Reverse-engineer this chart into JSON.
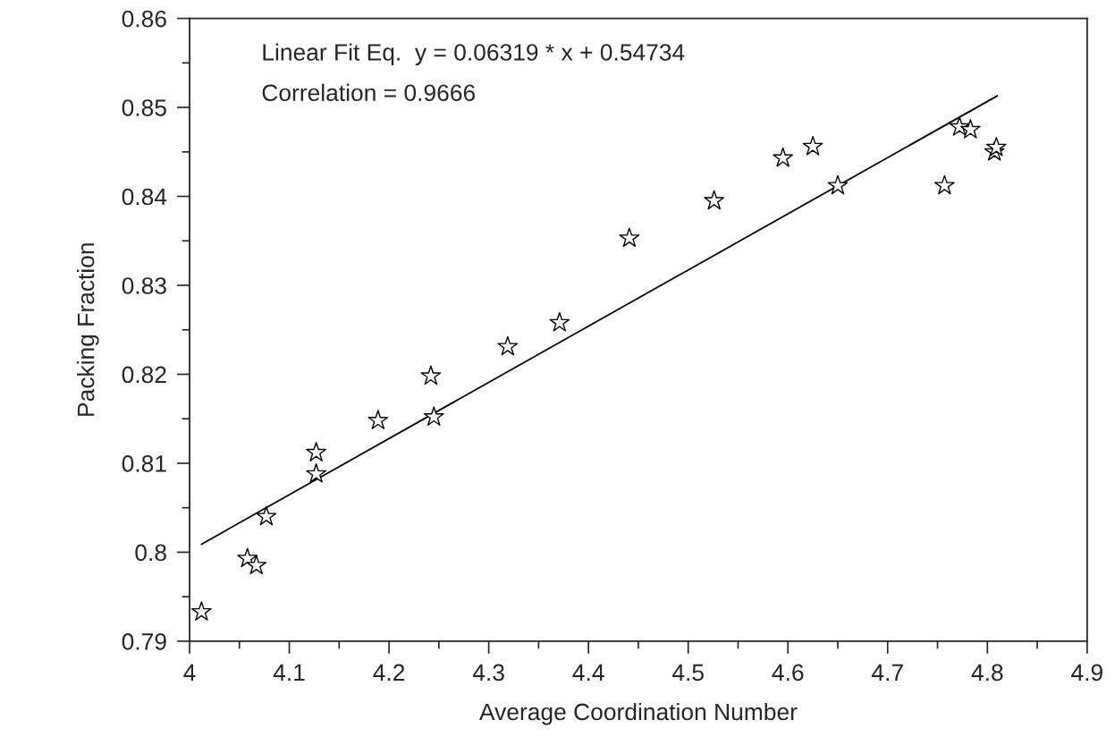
{
  "chart_data": {
    "type": "scatter",
    "xlabel": "Average Coordination Number",
    "ylabel": "Packing Fraction",
    "annotations": [
      "Linear Fit Eq.  y = 0.06319 * x + 0.54734",
      "Correlation = 0.9666"
    ],
    "series": [
      {
        "color": "#000000",
        "marker": "star",
        "x": [
          4.012,
          4.058,
          4.067,
          4.077,
          4.127,
          4.127,
          4.189,
          4.242,
          4.245,
          4.319,
          4.371,
          4.441,
          4.526,
          4.595,
          4.625,
          4.65,
          4.757,
          4.772,
          4.783,
          4.807,
          4.809
        ],
        "values": [
          0.7933,
          0.7993,
          0.7985,
          0.804,
          0.8112,
          0.8088,
          0.8148,
          0.8198,
          0.8152,
          0.8231,
          0.8258,
          0.8353,
          0.8395,
          0.8443,
          0.8456,
          0.8412,
          0.8412,
          0.8478,
          0.8475,
          0.845,
          0.8455
        ]
      },
      {
        "type": "line",
        "color": "#000000",
        "line_style": "solid",
        "x": [
          4.012,
          4.81
        ],
        "values": [
          0.8009,
          0.8513
        ]
      }
    ],
    "xlim": [
      4,
      4.9
    ],
    "ylim": [
      0.79,
      0.86
    ],
    "xticks": [
      {
        "value": 4,
        "label": "4"
      },
      {
        "value": 4.05,
        "label": null
      },
      4.1,
      {
        "value": 4.15,
        "label": null
      },
      4.2,
      {
        "value": 4.25,
        "label": null
      },
      4.3,
      {
        "value": 4.35,
        "label": null
      },
      4.4,
      {
        "value": 4.45,
        "label": null
      },
      4.5,
      {
        "value": 4.55,
        "label": null
      },
      4.6,
      {
        "value": 4.65,
        "label": null
      },
      4.7,
      {
        "value": 4.75,
        "label": null
      },
      4.8,
      {
        "value": 4.85,
        "label": null
      },
      4.9
    ],
    "yticks": [
      0.79,
      {
        "value": 0.795,
        "label": null
      },
      {
        "value": 0.8,
        "label": "0.8"
      },
      {
        "value": 0.805,
        "label": null
      },
      0.81,
      {
        "value": 0.815,
        "label": null
      },
      0.82,
      {
        "value": 0.825,
        "label": null
      },
      0.83,
      {
        "value": 0.835,
        "label": null
      },
      0.84,
      {
        "value": 0.845,
        "label": null
      },
      0.85,
      {
        "value": 0.855,
        "label": null
      },
      0.86
    ],
    "grid": false,
    "legend": false
  }
}
